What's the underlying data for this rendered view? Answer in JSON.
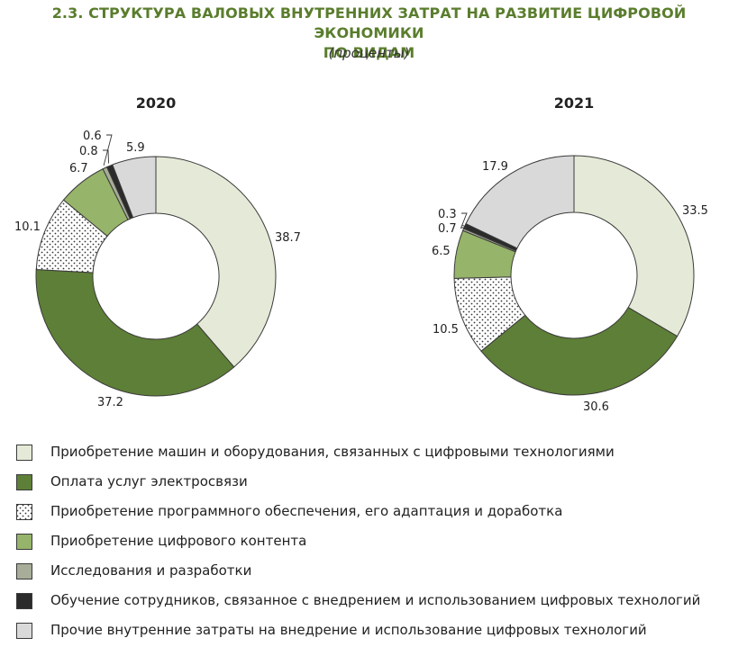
{
  "title_line1": "2.3. СТРУКТУРА ВАЛОВЫХ ВНУТРЕННИХ ЗАТРАТ НА РАЗВИТИЕ ЦИФРОВОЙ ЭКОНОМИКИ",
  "title_line2": "ПО ВИДАМ",
  "unit": "(проценты)",
  "colors": {
    "machines": "#e4ead7",
    "telecom": "#5e7f37",
    "software": "#ffffff",
    "content": "#96b46a",
    "research": "#a7ad98",
    "training": "#2b2b2b",
    "other": "#d9d9d9",
    "stroke": "#3a3a3a"
  },
  "legend": [
    {
      "key": "machines",
      "label": "Приобретение машин и оборудования, связанных с цифровыми технологиями"
    },
    {
      "key": "telecom",
      "label": "Оплата услуг электросвязи"
    },
    {
      "key": "software",
      "label": "Приобретение программного обеспечения, его адаптация и доработка"
    },
    {
      "key": "content",
      "label": "Приобретение цифрового контента"
    },
    {
      "key": "research",
      "label": "Исследования и разработки"
    },
    {
      "key": "training",
      "label": "Обучение сотрудников, связанное с внедрением и использованием цифровых технологий"
    },
    {
      "key": "other",
      "label": "Прочие внутренние затраты на внедрение и использование цифровых технологий"
    }
  ],
  "chart_data": [
    {
      "type": "pie",
      "title": "2020",
      "categories": [
        "machines",
        "telecom",
        "software",
        "content",
        "research",
        "training",
        "other"
      ],
      "values": [
        38.7,
        37.2,
        10.1,
        6.7,
        0.6,
        0.8,
        5.9
      ],
      "labels": [
        "38.7",
        "37.2",
        "10.1",
        "6.7",
        "0.6",
        "0.8",
        "5.9"
      ]
    },
    {
      "type": "pie",
      "title": "2021",
      "categories": [
        "machines",
        "telecom",
        "software",
        "content",
        "research",
        "training",
        "other"
      ],
      "values": [
        33.5,
        30.6,
        10.5,
        6.5,
        0.3,
        0.7,
        17.9
      ],
      "labels": [
        "33.5",
        "30.6",
        "10.5",
        "6.5",
        "0.3",
        "0.7",
        "17.9"
      ]
    }
  ]
}
